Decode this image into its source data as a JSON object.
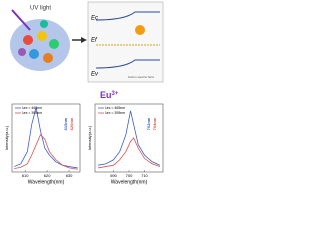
{
  "diagram": {
    "uv_label": "UV light",
    "band_labels": [
      "Ec",
      "Ef",
      "Ev"
    ],
    "field_label": "built-in electric field",
    "ion": "Eu",
    "ion_charge": "3+"
  },
  "charts": [
    {
      "type": "line",
      "xlabel": "Wavelength(nm)",
      "ylabel": "Intensity(a.u.)",
      "x": [
        605,
        608,
        611,
        613,
        615,
        617,
        619,
        621,
        624,
        627,
        630,
        634
      ],
      "xlim": [
        604,
        635
      ],
      "xticks": [
        610,
        620,
        630
      ],
      "ylim": [
        0,
        100
      ],
      "series": [
        {
          "name": "λex = 465nm",
          "color": "#3a5fcd",
          "values": [
            8,
            12,
            30,
            70,
            95,
            60,
            35,
            25,
            15,
            10,
            8,
            6
          ]
        },
        {
          "name": "λex = 395nm",
          "color": "#d9534f",
          "values": [
            5,
            7,
            12,
            25,
            40,
            55,
            48,
            30,
            18,
            10,
            6,
            4
          ]
        }
      ],
      "annotations": [
        "615nm",
        "620nm"
      ]
    },
    {
      "type": "line",
      "xlabel": "Wavelength(nm)",
      "ylabel": "Intensity(a.u.)",
      "x": [
        680,
        685,
        690,
        694,
        698,
        701,
        703,
        706,
        710,
        715,
        720
      ],
      "xlim": [
        678,
        722
      ],
      "xticks": [
        690,
        700,
        710
      ],
      "ylim": [
        0,
        100
      ],
      "series": [
        {
          "name": "λex = 465nm",
          "color": "#3a5fcd",
          "values": [
            10,
            12,
            18,
            30,
            55,
            90,
            70,
            40,
            25,
            15,
            10
          ]
        },
        {
          "name": "λex = 395nm",
          "color": "#d9534f",
          "values": [
            6,
            8,
            10,
            18,
            30,
            45,
            50,
            35,
            20,
            12,
            8
          ]
        }
      ],
      "annotations": [
        "702nm",
        "704nm"
      ]
    }
  ]
}
